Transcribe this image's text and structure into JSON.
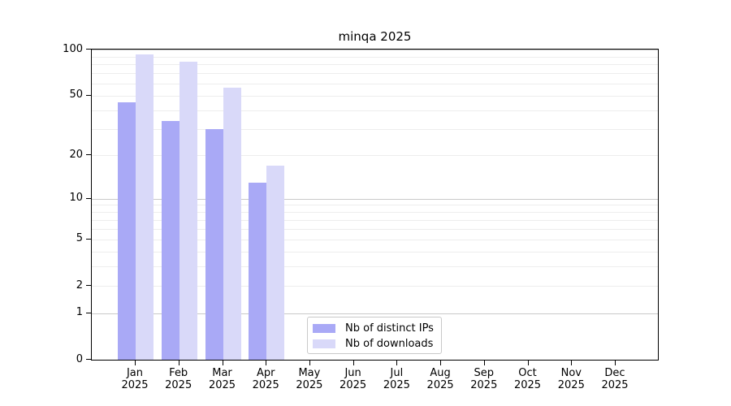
{
  "chart_data": {
    "type": "bar",
    "title": "minqa 2025",
    "categories": [
      "Jan",
      "Feb",
      "Mar",
      "Apr",
      "May",
      "Jun",
      "Jul",
      "Aug",
      "Sep",
      "Oct",
      "Nov",
      "Dec"
    ],
    "category_year": "2025",
    "series": [
      {
        "name": "Nb of distinct IPs",
        "color": "#a9a9f6",
        "values": [
          45,
          34,
          30,
          13,
          null,
          null,
          null,
          null,
          null,
          null,
          null,
          null
        ]
      },
      {
        "name": "Nb of downloads",
        "color": "#d9d9f9",
        "values": [
          93,
          83,
          56,
          17,
          null,
          null,
          null,
          null,
          null,
          null,
          null,
          null
        ]
      }
    ],
    "y_scale": "log10(1+x)",
    "ylim": [
      0,
      100
    ],
    "y_ticks": [
      100,
      50,
      20,
      10,
      5,
      2,
      1,
      0
    ],
    "grid_major": [
      1,
      10,
      100
    ],
    "grid_minor": [
      2,
      3,
      4,
      5,
      6,
      7,
      8,
      9,
      20,
      30,
      40,
      50,
      60,
      70,
      80,
      90
    ],
    "legend_position": "lower center",
    "grid_on": true
  },
  "colors": {
    "spine": "#000000",
    "grid_major": "#c9c9c9",
    "grid_minor": "#ededed",
    "legend_border": "#c9c9c9",
    "background": "#ffffff"
  }
}
